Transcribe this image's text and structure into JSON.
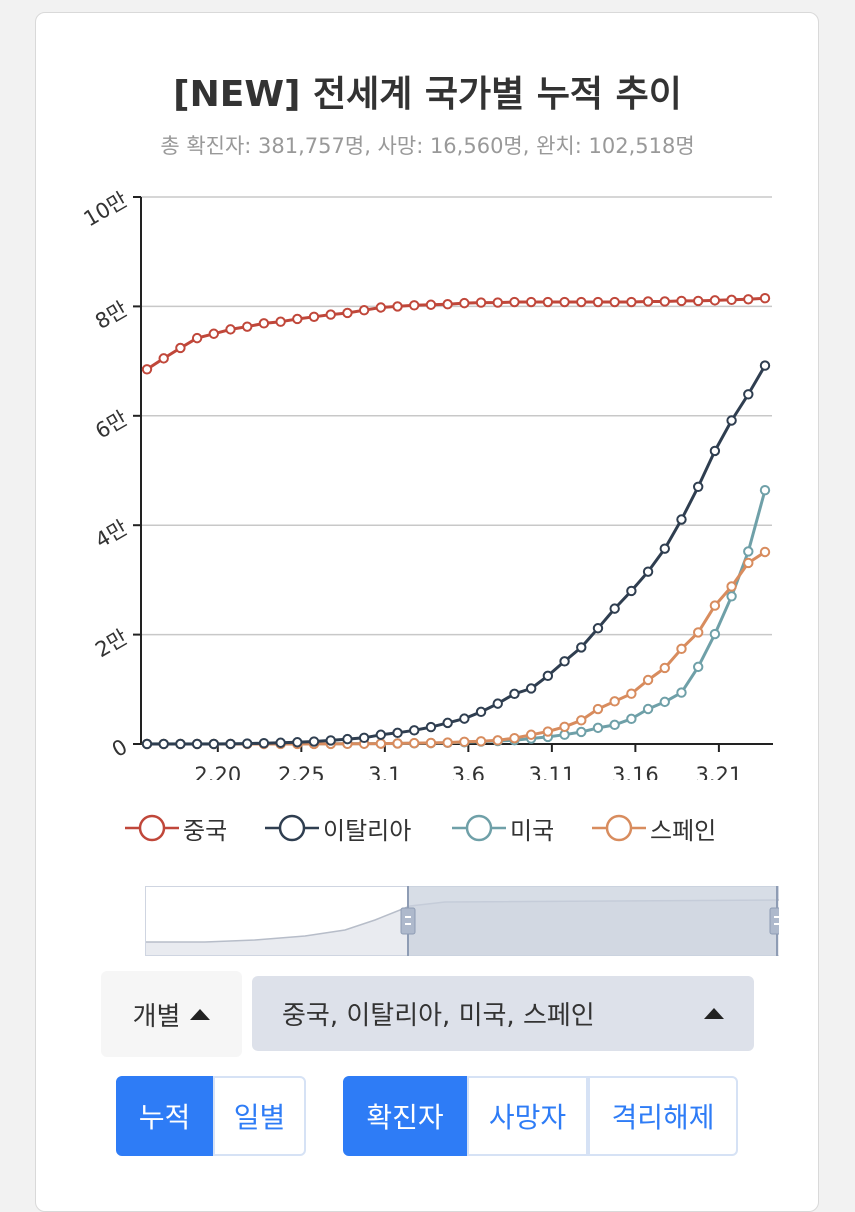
{
  "header": {
    "title": "[NEW] 전세계 국가별 누적 추이",
    "subtitle": "총 확진자: 381,757명, 사망: 16,560명, 완치: 102,518명"
  },
  "colors": {
    "china": "#c0473a",
    "italy": "#2f3e50",
    "usa": "#6fa0a8",
    "spain": "#d88c5e",
    "accent": "#2e7cf6"
  },
  "chart_data": {
    "type": "line",
    "title": "[NEW] 전세계 국가별 누적 추이",
    "subtitle": "총 확진자: 381,757명, 사망: 16,560명, 완치: 102,518명",
    "y_tick_labels": [
      "0",
      "2만",
      "4만",
      "6만",
      "8만",
      "10만"
    ],
    "y_ticks": [
      0,
      20000,
      40000,
      60000,
      80000,
      100000
    ],
    "ylim": [
      0,
      100000
    ],
    "x_tick_labels": [
      "2.20",
      "2.25",
      "3.1",
      "3.6",
      "3.11",
      "3.16",
      "3.21"
    ],
    "x_tick_index": [
      4,
      9,
      14,
      19,
      24,
      29,
      34
    ],
    "x": [
      "2.16",
      "2.17",
      "2.18",
      "2.19",
      "2.20",
      "2.21",
      "2.22",
      "2.23",
      "2.24",
      "2.25",
      "2.26",
      "2.27",
      "2.28",
      "2.29",
      "3.1",
      "3.2",
      "3.3",
      "3.4",
      "3.5",
      "3.6",
      "3.7",
      "3.8",
      "3.9",
      "3.10",
      "3.11",
      "3.12",
      "3.13",
      "3.14",
      "3.15",
      "3.16",
      "3.17",
      "3.18",
      "3.19",
      "3.20",
      "3.21",
      "3.22",
      "3.23",
      "3.24"
    ],
    "grid": true,
    "legend_position": "bottom",
    "series": [
      {
        "name": "중국",
        "color_key": "china",
        "values": [
          68500,
          70500,
          72400,
          74200,
          75000,
          75800,
          76300,
          76900,
          77200,
          77700,
          78100,
          78500,
          78800,
          79300,
          79800,
          80000,
          80200,
          80300,
          80400,
          80600,
          80700,
          80700,
          80800,
          80800,
          80800,
          80800,
          80800,
          80800,
          80800,
          80800,
          80900,
          80900,
          81000,
          81000,
          81100,
          81200,
          81300,
          81500
        ]
      },
      {
        "name": "이탈리아",
        "color_key": "italy",
        "values": [
          3,
          3,
          3,
          3,
          3,
          20,
          80,
          150,
          230,
          320,
          450,
          650,
          890,
          1130,
          1690,
          2040,
          2500,
          3090,
          3860,
          4640,
          5880,
          7380,
          9170,
          10150,
          12460,
          15110,
          17660,
          21160,
          24750,
          27980,
          31510,
          35710,
          41040,
          47020,
          53580,
          59140,
          63930,
          69180
        ]
      },
      {
        "name": "미국",
        "color_key": "usa",
        "values": [
          15,
          15,
          15,
          15,
          15,
          15,
          35,
          35,
          35,
          53,
          57,
          60,
          62,
          68,
          74,
          100,
          120,
          160,
          220,
          320,
          440,
          540,
          700,
          1000,
          1300,
          1700,
          2200,
          2950,
          3500,
          4600,
          6400,
          7700,
          9400,
          14100,
          20100,
          27000,
          35200,
          46400
        ]
      },
      {
        "name": "스페인",
        "color_key": "spain",
        "values": [
          2,
          2,
          2,
          2,
          2,
          2,
          2,
          2,
          3,
          4,
          10,
          15,
          30,
          45,
          70,
          110,
          160,
          200,
          260,
          400,
          500,
          670,
          1070,
          1690,
          2280,
          3150,
          4330,
          6390,
          7800,
          9200,
          11700,
          13900,
          17400,
          20400,
          25300,
          28800,
          33100,
          35100
        ]
      }
    ]
  },
  "controls": {
    "mode_label": "개별",
    "countries_label": "중국, 이탈리아, 미국, 스페인",
    "tabs_left": [
      "누적",
      "일별"
    ],
    "tabs_right": [
      "확진자",
      "사망자",
      "격리해제"
    ]
  }
}
